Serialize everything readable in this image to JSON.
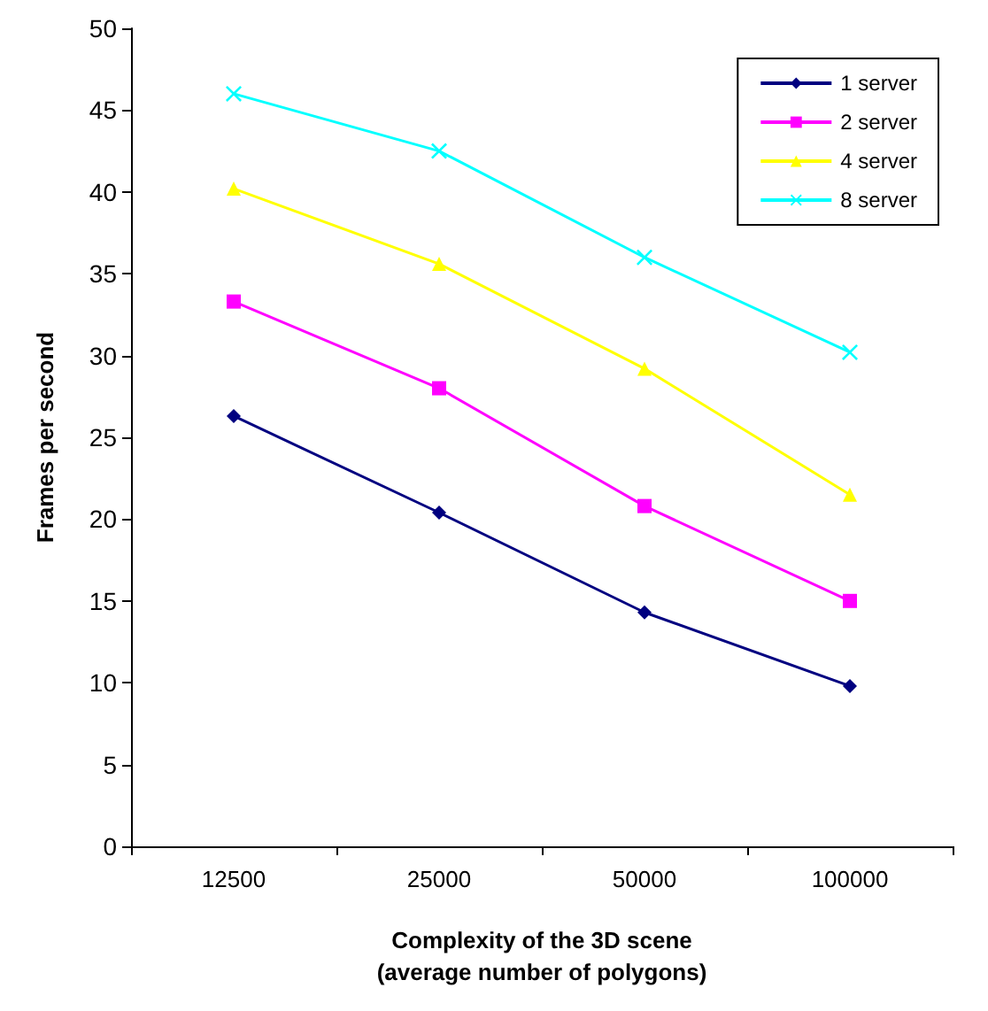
{
  "chart_data": {
    "type": "line",
    "xlabel": "Complexity of the 3D scene\n(average number of polygons)",
    "ylabel": "Frames per second",
    "categories": [
      "12500",
      "25000",
      "50000",
      "100000"
    ],
    "series": [
      {
        "name": "1 server",
        "color": "#000080",
        "marker": "diamond",
        "values": [
          26.3,
          20.4,
          14.3,
          9.8
        ]
      },
      {
        "name": "2 server",
        "color": "#ff00ff",
        "marker": "square",
        "values": [
          33.3,
          28.0,
          20.8,
          15.0
        ]
      },
      {
        "name": "4 server",
        "color": "#ffff00",
        "marker": "triangle",
        "values": [
          40.2,
          35.6,
          29.2,
          21.5
        ]
      },
      {
        "name": "8 server",
        "color": "#00ffff",
        "marker": "cross",
        "values": [
          46.0,
          42.5,
          36.0,
          30.2
        ]
      }
    ],
    "ylim": [
      0,
      50
    ],
    "yticks": [
      0,
      5,
      10,
      15,
      20,
      25,
      30,
      35,
      40,
      45,
      50
    ],
    "grid": false,
    "legend": "top right",
    "line_style": "solid"
  }
}
